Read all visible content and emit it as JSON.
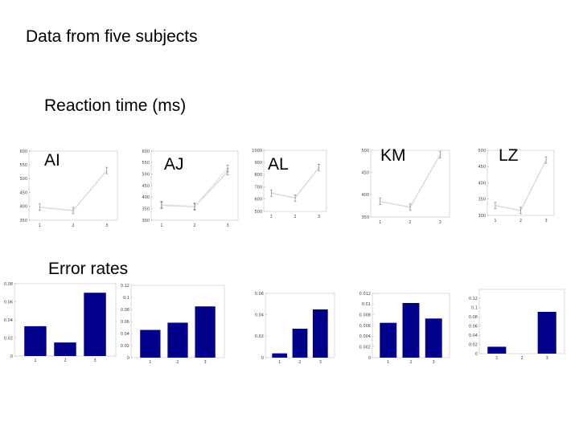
{
  "title": "Data from five subjects",
  "sections": {
    "reaction_time": "Reaction time (ms)",
    "error_rates": "Error rates"
  },
  "colors": {
    "line": "#d9d9d9",
    "bar": "#00008b",
    "errorbar": "#555555"
  },
  "chart_data": [
    {
      "id": "rt-AI",
      "type": "line",
      "subject": "AI",
      "x": [
        1,
        2,
        3
      ],
      "xticks": [
        "1",
        "2",
        "3"
      ],
      "ylim": [
        350,
        600
      ],
      "yticks": [
        350,
        400,
        450,
        500,
        550,
        600
      ],
      "series": [
        {
          "values": [
            397,
            385,
            530
          ]
        }
      ]
    },
    {
      "id": "rt-AJ",
      "type": "line",
      "subject": "AJ",
      "x": [
        1,
        2,
        3
      ],
      "xticks": [
        "1",
        "2",
        "3"
      ],
      "ylim": [
        300,
        600
      ],
      "yticks": [
        300,
        350,
        400,
        450,
        500,
        550,
        600
      ],
      "series": [
        {
          "values": [
            365,
            358,
            510
          ]
        },
        {
          "values": [
            368,
            360,
            525
          ]
        }
      ]
    },
    {
      "id": "rt-AL",
      "type": "line",
      "subject": "AL",
      "x": [
        1,
        2,
        3
      ],
      "xticks": [
        "1",
        "2",
        "3"
      ],
      "ylim": [
        500,
        1000
      ],
      "yticks": [
        500,
        600,
        700,
        800,
        900,
        1000
      ],
      "series": [
        {
          "values": [
            650,
            610,
            860
          ]
        }
      ]
    },
    {
      "id": "rt-KM",
      "type": "line",
      "subject": "KM",
      "x": [
        1,
        2,
        3
      ],
      "xticks": [
        "1",
        "2",
        "3"
      ],
      "ylim": [
        350,
        500
      ],
      "yticks": [
        350,
        400,
        450,
        500
      ],
      "series": [
        {
          "values": [
            385,
            372,
            490
          ]
        }
      ]
    },
    {
      "id": "rt-LZ",
      "type": "line",
      "subject": "LZ",
      "x": [
        1,
        2,
        3
      ],
      "xticks": [
        "1",
        "2",
        "3"
      ],
      "ylim": [
        300,
        500
      ],
      "yticks": [
        300,
        350,
        400,
        450,
        500
      ],
      "series": [
        {
          "values": [
            330,
            315,
            470
          ]
        }
      ]
    },
    {
      "id": "err-AI",
      "type": "bar",
      "categories": [
        "1",
        "2",
        "3"
      ],
      "values": [
        0.033,
        0.015,
        0.07
      ],
      "ylim": [
        0,
        0.08
      ],
      "yticks": [
        "0",
        "0.02",
        "0.04",
        "0.06",
        "0.08"
      ]
    },
    {
      "id": "err-AJ",
      "type": "bar",
      "categories": [
        "1",
        "2",
        "3"
      ],
      "values": [
        0.046,
        0.058,
        0.085
      ],
      "ylim": [
        0,
        0.12
      ],
      "yticks": [
        "0",
        "0.02",
        "0.04",
        "0.06",
        "0.08",
        "0.1",
        "0.12"
      ]
    },
    {
      "id": "err-AL",
      "type": "bar",
      "categories": [
        "1",
        "2",
        "3"
      ],
      "values": [
        0.004,
        0.027,
        0.045
      ],
      "ylim": [
        0,
        0.06
      ],
      "yticks": [
        "0",
        "0.02",
        "0.04",
        "0.06"
      ]
    },
    {
      "id": "err-KM",
      "type": "bar",
      "categories": [
        "1",
        "2",
        "3"
      ],
      "values": [
        0.0065,
        0.0102,
        0.0073
      ],
      "ylim": [
        0,
        0.012
      ],
      "yticks": [
        "0",
        "0.002",
        "0.004",
        "0.006",
        "0.008",
        "0.01",
        "0.012"
      ]
    },
    {
      "id": "err-LZ",
      "type": "bar",
      "categories": [
        "1",
        "2",
        "3"
      ],
      "values": [
        0.015,
        0,
        0.091
      ],
      "ylim": [
        0,
        0.14
      ],
      "yticks": [
        "0",
        "0.02",
        "0.04",
        "0.06",
        "0.08",
        "0.1",
        "0.12"
      ]
    }
  ]
}
